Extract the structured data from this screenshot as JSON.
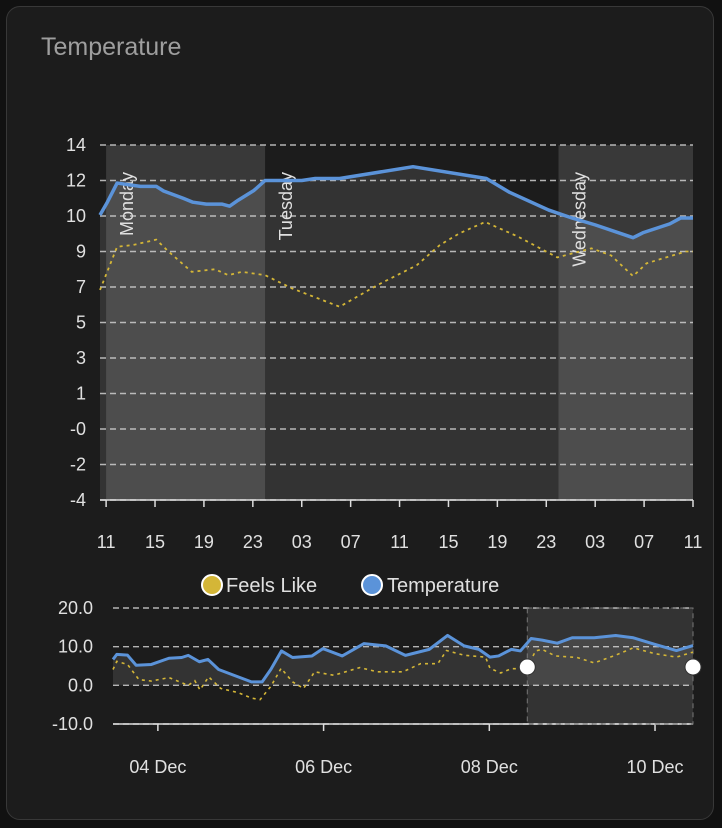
{
  "card": {
    "title": "Temperature"
  },
  "colors": {
    "temperature": "#5b93d9",
    "feels_like": "#d4b637",
    "background": "#1c1c1c"
  },
  "chart_data": [
    {
      "type": "line",
      "name": "main",
      "x_unit": "hours since Monday 11:00",
      "xlim": [
        -0.5,
        48
      ],
      "ylim": [
        -4,
        14
      ],
      "y_ticks": [
        14,
        12.2,
        10.4,
        8.6,
        6.8,
        5,
        3.2,
        1.4,
        -0.4,
        -2.2,
        -4
      ],
      "y_tick_labels": [
        "14",
        "12",
        "10",
        "9",
        "7",
        "5",
        "3",
        "1",
        "-0",
        "-2",
        "-4"
      ],
      "x_ticks": [
        0,
        4,
        8,
        12,
        16,
        20,
        24,
        28,
        32,
        36,
        40,
        44,
        48
      ],
      "x_tick_labels": [
        "11",
        "15",
        "19",
        "23",
        "03",
        "07",
        "11",
        "15",
        "19",
        "23",
        "03",
        "07",
        "11"
      ],
      "grid": true,
      "day_annotations": [
        {
          "label": "Monday",
          "start": 0,
          "end": 13,
          "shaded": true
        },
        {
          "label": "Tuesday",
          "start": 13,
          "end": 37,
          "shaded": false
        },
        {
          "label": "Wednesday",
          "start": 37,
          "end": 48,
          "shaded": true
        }
      ],
      "series": [
        {
          "name": "Temperature",
          "style": "solid",
          "x": [
            -0.5,
            0.1,
            0.9,
            2.8,
            4.1,
            4.7,
            6.3,
            7.1,
            8.2,
            9.5,
            10.1,
            10.8,
            12.1,
            13.0,
            16.0,
            17.1,
            19.1,
            25.1,
            31.1,
            33.0,
            36.2,
            38.1,
            40.0,
            43.1,
            43.9,
            46.1,
            47.0,
            48
          ],
          "y": [
            10.45,
            11.1,
            12.07,
            11.9,
            11.9,
            11.67,
            11.3,
            11.1,
            11.0,
            11.0,
            10.9,
            11.2,
            11.7,
            12.2,
            12.2,
            12.3,
            12.3,
            12.9,
            12.3,
            11.6,
            10.7,
            10.3,
            9.95,
            9.3,
            9.55,
            10.0,
            10.3,
            10.3
          ]
        },
        {
          "name": "Feels Like",
          "style": "dotted",
          "x": [
            -0.5,
            0.9,
            2.2,
            4.1,
            5.1,
            7.0,
            8.9,
            10.0,
            11.1,
            13.0,
            15.2,
            19.1,
            22.2,
            25.4,
            27.3,
            28.9,
            31.0,
            33.7,
            36.9,
            39.7,
            41.3,
            43.1,
            44.2,
            47.4,
            48
          ],
          "y": [
            6.65,
            8.84,
            8.93,
            9.2,
            8.6,
            7.57,
            7.7,
            7.4,
            7.57,
            7.4,
            6.73,
            5.8,
            6.9,
            7.9,
            8.93,
            9.52,
            10.1,
            9.35,
            8.3,
            8.76,
            8.4,
            7.35,
            8.0,
            8.6,
            8.6
          ]
        }
      ]
    },
    {
      "type": "line",
      "name": "brush",
      "x_unit": "hours since 03 Dec 11:00",
      "xlim": [
        0,
        168
      ],
      "ylim": [
        -10,
        20
      ],
      "y_ticks": [
        20,
        10,
        0,
        -10
      ],
      "y_tick_labels": [
        "20.0",
        "10.0",
        "0.0",
        "-10.0"
      ],
      "x_ticks": [
        13,
        61,
        109,
        157
      ],
      "x_tick_labels": [
        "04 Dec",
        "06 Dec",
        "08 Dec",
        "10 Dec"
      ],
      "selection": [
        120,
        168
      ],
      "series": [
        {
          "name": "Temperature",
          "style": "solid",
          "x": [
            0,
            1.1,
            4.2,
            6.7,
            11.1,
            16.2,
            19.9,
            21.8,
            25.0,
            27.5,
            30.6,
            35.0,
            40.1,
            43.2,
            45.7,
            48.8,
            52.0,
            57.6,
            60.8,
            66.4,
            72.7,
            79.0,
            84.7,
            91.6,
            96.9,
            101.7,
            106.0,
            109.2,
            111.7,
            115.4,
            118.0,
            121.1,
            124.3,
            128.7,
            133.0,
            139.4,
            145.6,
            150.7,
            156.9,
            163.2,
            168
          ],
          "y": [
            6.7,
            8.0,
            7.8,
            5.2,
            5.4,
            7.0,
            7.2,
            7.75,
            6.1,
            6.7,
            4.1,
            2.6,
            0.9,
            0.9,
            4.1,
            8.9,
            7.2,
            7.6,
            9.5,
            7.6,
            10.8,
            10.2,
            7.75,
            9.3,
            12.9,
            10.2,
            9.3,
            7.3,
            7.6,
            9.3,
            8.9,
            12.1,
            11.7,
            10.9,
            12.3,
            12.3,
            12.9,
            12.3,
            10.6,
            9.0,
            10.3
          ]
        },
        {
          "name": "Feels Like",
          "style": "dotted",
          "x": [
            0,
            1.1,
            4.2,
            7.5,
            11.1,
            16.2,
            21.8,
            23.7,
            25.2,
            27.7,
            31.2,
            36.3,
            40.1,
            42.6,
            45.7,
            48.7,
            52.0,
            55.2,
            58.4,
            64.0,
            71.5,
            76.5,
            84.0,
            89.1,
            94.1,
            96.6,
            101.6,
            107.9,
            109.2,
            112.3,
            115.4,
            119.8,
            122.4,
            124.3,
            128.1,
            134.4,
            139.4,
            145.6,
            150.7,
            156.9,
            163.2,
            168
          ],
          "y": [
            4.1,
            6.2,
            5.4,
            1.5,
            1.1,
            2.0,
            0,
            1.2,
            -1.2,
            2.2,
            -0.8,
            -1.9,
            -3.3,
            -3.7,
            -0.3,
            4.4,
            0.9,
            -0.8,
            3.5,
            2.6,
            4.6,
            3.5,
            3.5,
            5.6,
            5.6,
            9.0,
            7.8,
            7.3,
            4.4,
            3.2,
            4.3,
            4.3,
            8.9,
            9.3,
            7.6,
            7.2,
            5.8,
            7.8,
            9.7,
            8.2,
            7.3,
            8.6
          ]
        }
      ]
    }
  ],
  "legend": {
    "items": [
      {
        "label": "Feels Like",
        "color": "#d4b637"
      },
      {
        "label": "Temperature",
        "color": "#5b93d9"
      }
    ]
  }
}
